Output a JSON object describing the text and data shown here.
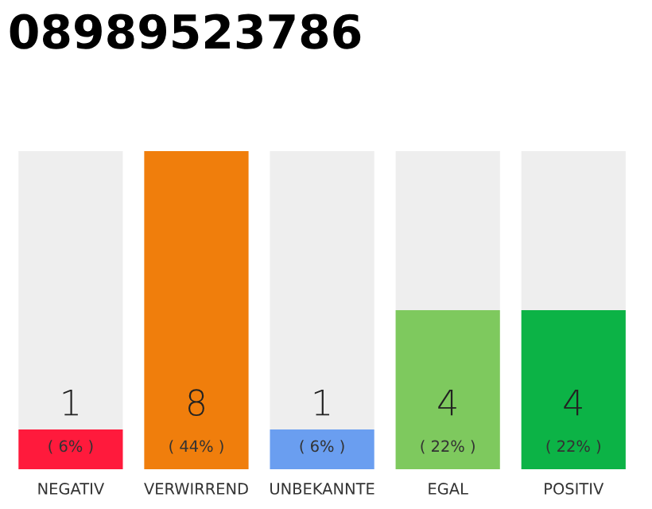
{
  "chart_data": {
    "type": "bar",
    "title": "08989523786",
    "stacked": true,
    "categories": [
      "NEGATIV",
      "VERWIRREND",
      "UNBEKANNTE",
      "EGAL",
      "POSITIV"
    ],
    "series": [
      {
        "colors": [
          "#ff1a3c",
          "#f07e0c",
          "#6a9ef0",
          "#7ec95e",
          "#0cb346"
        ],
        "values": [
          1,
          8,
          1,
          4,
          4
        ],
        "value_labels": [
          "1",
          "8",
          "1",
          "4",
          "4"
        ]
      },
      {
        "color": "#eeeeee",
        "values": [
          7,
          0,
          7,
          4,
          4
        ]
      }
    ],
    "annotations": [
      "( 6% )",
      "( 44% )",
      "( 6% )",
      "( 22% )",
      "( 22% )"
    ],
    "grid": false,
    "legend": false
  }
}
